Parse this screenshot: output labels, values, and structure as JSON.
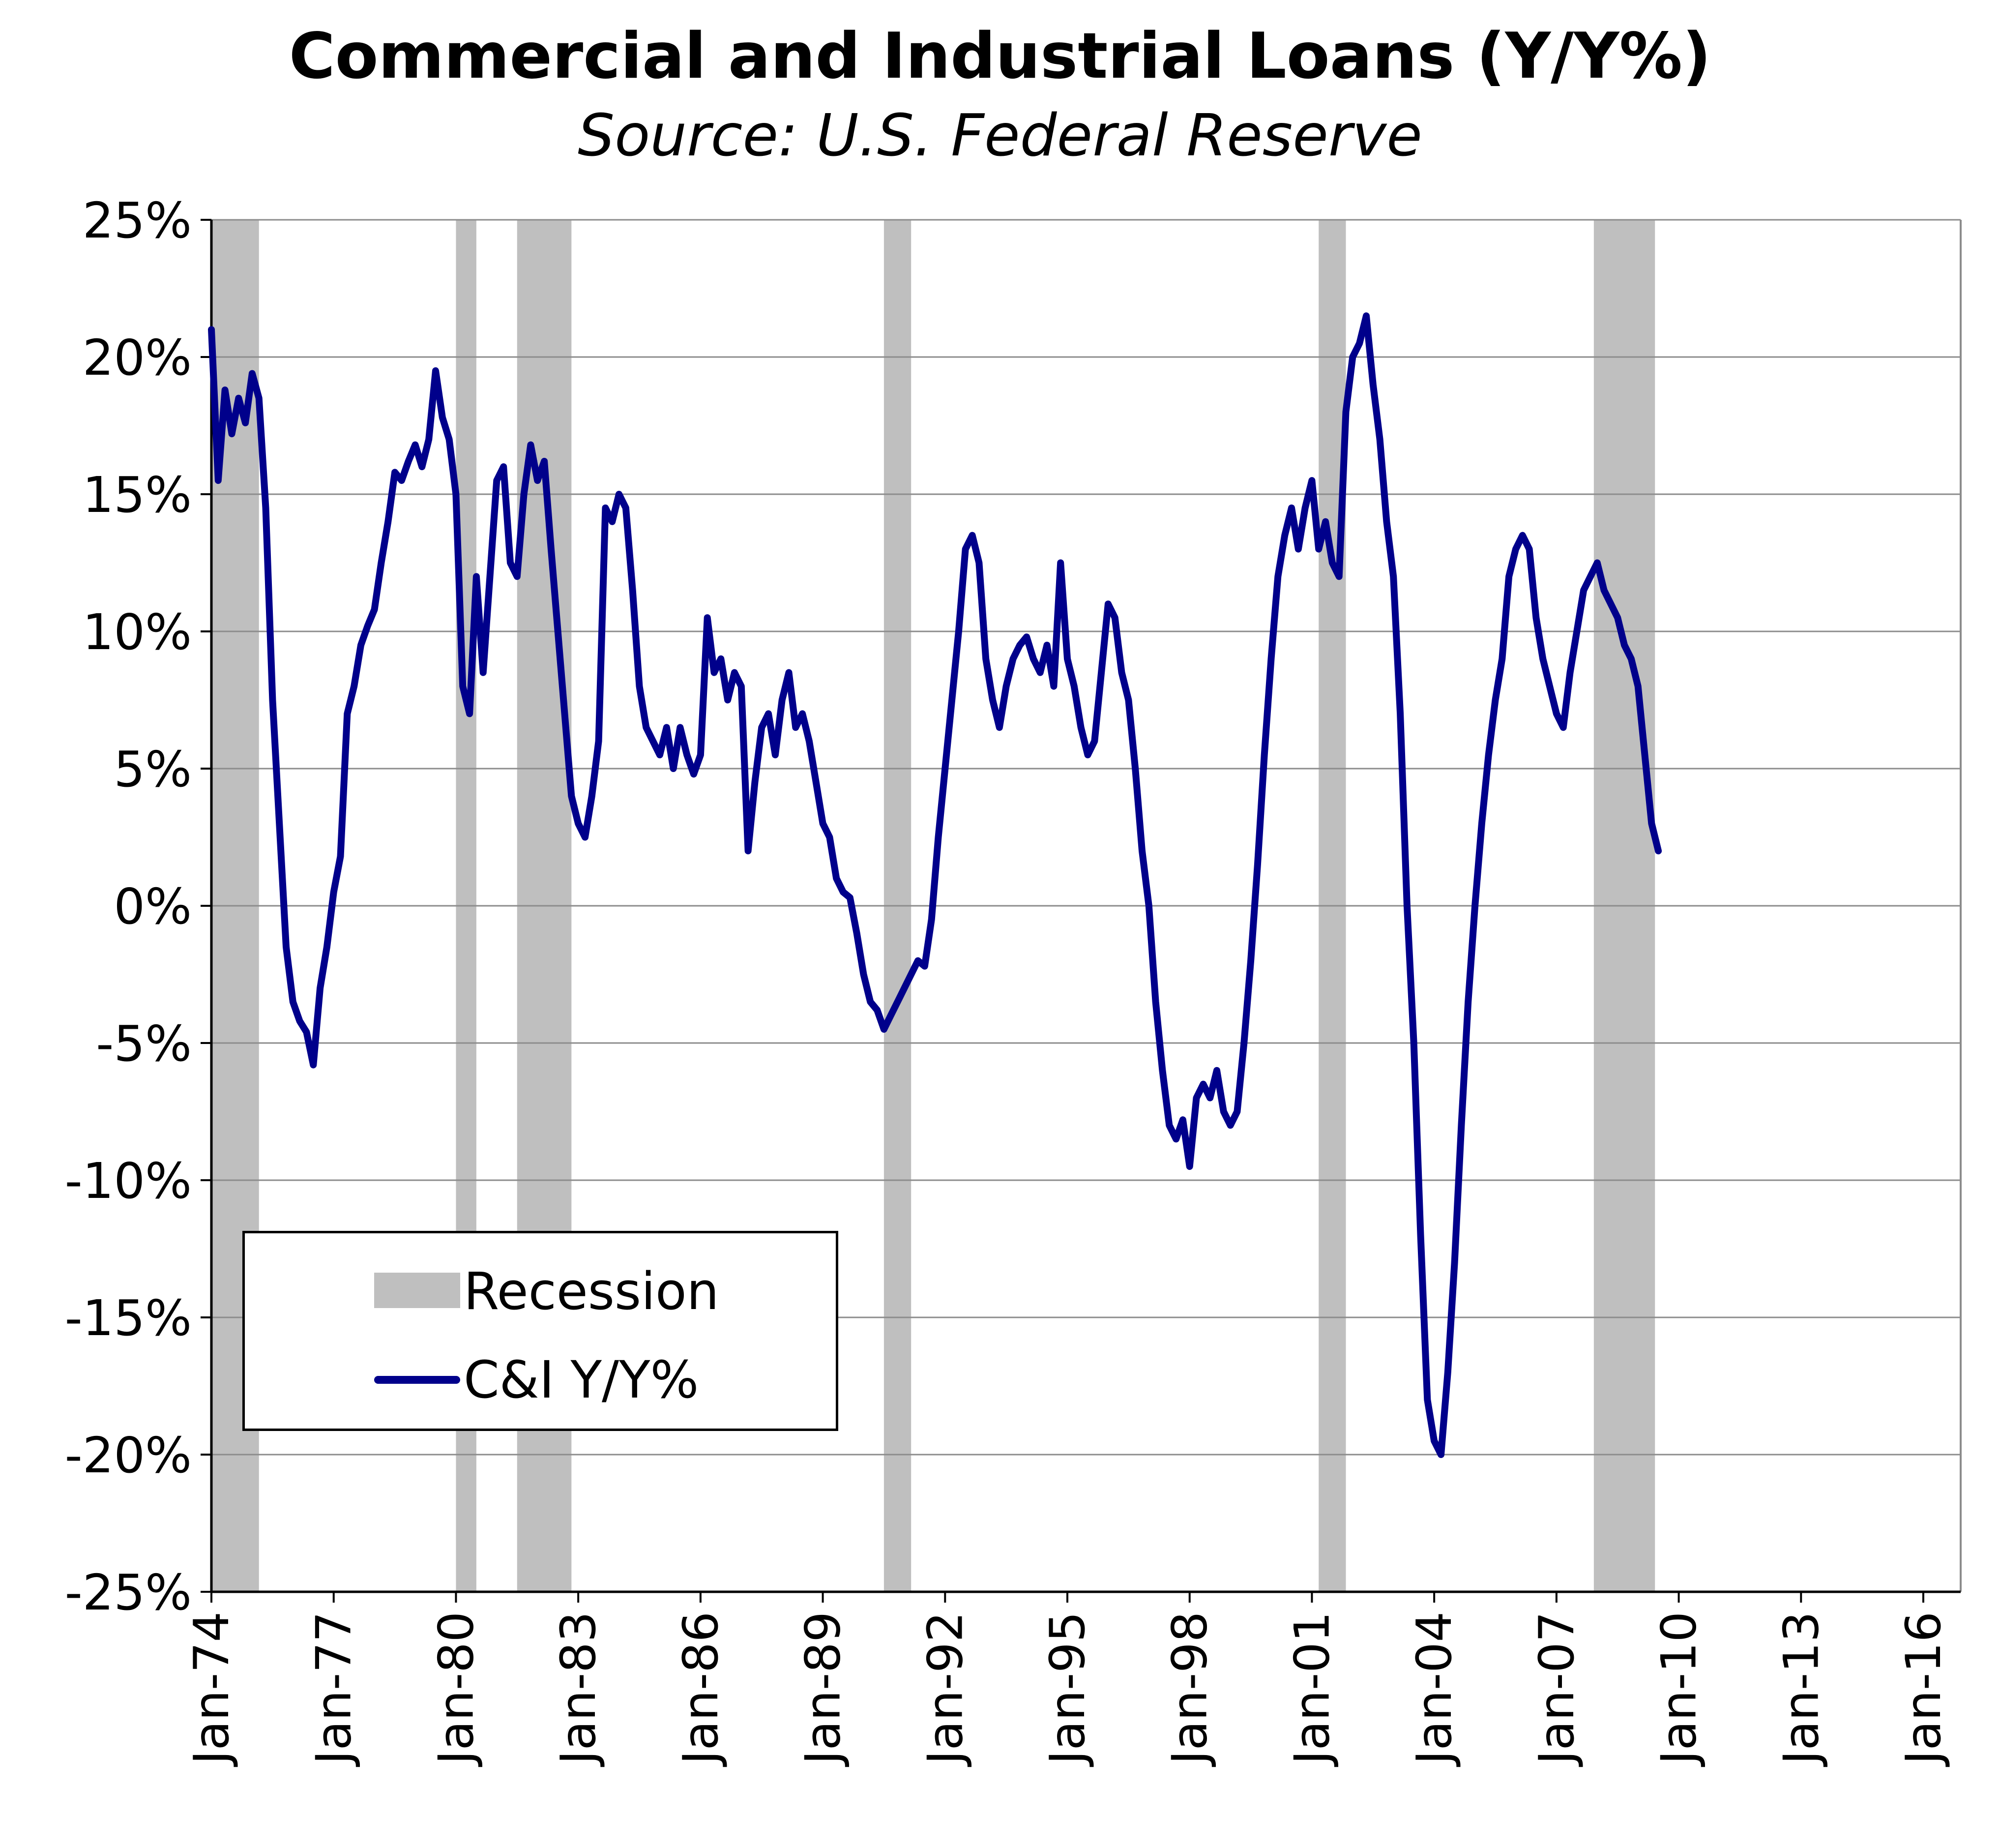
{
  "chart_data": {
    "type": "line",
    "title": "Commercial and Industrial Loans (Y/Y%)",
    "subtitle": "Source: U.S. Federal Reserve",
    "xlabel": "",
    "ylabel": "",
    "ylim": [
      -25,
      25
    ],
    "xlim": [
      "1974-01",
      "2016-12"
    ],
    "y_ticks": [
      "25%",
      "20%",
      "15%",
      "10%",
      "5%",
      "0%",
      "-5%",
      "-10%",
      "-15%",
      "-20%",
      "-25%"
    ],
    "x_ticks": [
      "Jan-74",
      "Jan-77",
      "Jan-80",
      "Jan-83",
      "Jan-86",
      "Jan-89",
      "Jan-92",
      "Jan-95",
      "Jan-98",
      "Jan-01",
      "Jan-04",
      "Jan-07",
      "Jan-10",
      "Jan-13",
      "Jan-16"
    ],
    "grid": "horizontal",
    "legend_position": "bottom-left",
    "legend": [
      {
        "label": "Recession",
        "kind": "band",
        "color": "#bfbfbf"
      },
      {
        "label": "C&I Y/Y%",
        "kind": "line",
        "color": "#00008b"
      }
    ],
    "recessions": [
      [
        "1974-01",
        "1975-03"
      ],
      [
        "1980-01",
        "1980-07"
      ],
      [
        "1981-07",
        "1982-11"
      ],
      [
        "1990-07",
        "1991-03"
      ],
      [
        "2001-03",
        "2001-11"
      ],
      [
        "2007-12",
        "2009-06"
      ]
    ],
    "series": [
      {
        "name": "C&I Y/Y%",
        "color": "#00008b",
        "points": [
          [
            "1974-01",
            21.0
          ],
          [
            "1974-03",
            15.5
          ],
          [
            "1974-05",
            18.8
          ],
          [
            "1974-07",
            17.2
          ],
          [
            "1974-09",
            18.5
          ],
          [
            "1974-11",
            17.6
          ],
          [
            "1975-01",
            19.4
          ],
          [
            "1975-03",
            18.5
          ],
          [
            "1975-05",
            14.5
          ],
          [
            "1975-07",
            7.5
          ],
          [
            "1975-09",
            3.0
          ],
          [
            "1975-11",
            -1.5
          ],
          [
            "1976-01",
            -3.5
          ],
          [
            "1976-03",
            -4.2
          ],
          [
            "1976-05",
            -4.6
          ],
          [
            "1976-07",
            -5.8
          ],
          [
            "1976-09",
            -3.0
          ],
          [
            "1976-11",
            -1.5
          ],
          [
            "1977-01",
            0.5
          ],
          [
            "1977-03",
            1.8
          ],
          [
            "1977-05",
            7.0
          ],
          [
            "1977-07",
            8.0
          ],
          [
            "1977-09",
            9.5
          ],
          [
            "1977-11",
            10.2
          ],
          [
            "1978-01",
            10.8
          ],
          [
            "1978-03",
            12.5
          ],
          [
            "1978-05",
            14.0
          ],
          [
            "1978-07",
            15.8
          ],
          [
            "1978-09",
            15.5
          ],
          [
            "1978-11",
            16.2
          ],
          [
            "1979-01",
            16.8
          ],
          [
            "1979-03",
            16.0
          ],
          [
            "1979-05",
            17.0
          ],
          [
            "1979-07",
            19.5
          ],
          [
            "1979-09",
            17.8
          ],
          [
            "1979-11",
            17.0
          ],
          [
            "1980-01",
            15.0
          ],
          [
            "1980-03",
            8.0
          ],
          [
            "1980-05",
            7.0
          ],
          [
            "1980-07",
            12.0
          ],
          [
            "1980-09",
            8.5
          ],
          [
            "1980-11",
            12.0
          ],
          [
            "1981-01",
            15.5
          ],
          [
            "1981-03",
            16.0
          ],
          [
            "1981-05",
            12.5
          ],
          [
            "1981-07",
            12.0
          ],
          [
            "1981-09",
            15.0
          ],
          [
            "1981-11",
            16.8
          ],
          [
            "1982-01",
            15.5
          ],
          [
            "1982-03",
            16.2
          ],
          [
            "1982-05",
            13.0
          ],
          [
            "1982-07",
            10.0
          ],
          [
            "1982-09",
            7.0
          ],
          [
            "1982-11",
            4.0
          ],
          [
            "1983-01",
            3.0
          ],
          [
            "1983-03",
            2.5
          ],
          [
            "1983-05",
            4.0
          ],
          [
            "1983-07",
            6.0
          ],
          [
            "1983-09",
            14.5
          ],
          [
            "1983-11",
            14.0
          ],
          [
            "1984-01",
            15.0
          ],
          [
            "1984-03",
            14.5
          ],
          [
            "1984-05",
            11.5
          ],
          [
            "1984-07",
            8.0
          ],
          [
            "1984-09",
            6.5
          ],
          [
            "1984-11",
            6.0
          ],
          [
            "1985-01",
            5.5
          ],
          [
            "1985-03",
            6.5
          ],
          [
            "1985-05",
            5.0
          ],
          [
            "1985-07",
            6.5
          ],
          [
            "1985-09",
            5.5
          ],
          [
            "1985-11",
            4.8
          ],
          [
            "1986-01",
            5.5
          ],
          [
            "1986-03",
            10.5
          ],
          [
            "1986-05",
            8.5
          ],
          [
            "1986-07",
            9.0
          ],
          [
            "1986-09",
            7.5
          ],
          [
            "1986-11",
            8.5
          ],
          [
            "1987-01",
            8.0
          ],
          [
            "1987-03",
            2.0
          ],
          [
            "1987-05",
            4.5
          ],
          [
            "1987-07",
            6.5
          ],
          [
            "1987-09",
            7.0
          ],
          [
            "1987-11",
            5.5
          ],
          [
            "1988-01",
            7.5
          ],
          [
            "1988-03",
            8.5
          ],
          [
            "1988-05",
            6.5
          ],
          [
            "1988-07",
            7.0
          ],
          [
            "1988-09",
            6.0
          ],
          [
            "1988-11",
            4.5
          ],
          [
            "1989-01",
            3.0
          ],
          [
            "1989-03",
            2.5
          ],
          [
            "1989-05",
            1.0
          ],
          [
            "1989-07",
            0.5
          ],
          [
            "1989-09",
            0.3
          ],
          [
            "1989-11",
            -1.0
          ],
          [
            "1990-01",
            -2.5
          ],
          [
            "1990-03",
            -3.5
          ],
          [
            "1990-05",
            -3.8
          ],
          [
            "1990-07",
            -4.5
          ],
          [
            "1990-09",
            -4.0
          ],
          [
            "1990-11",
            -3.5
          ],
          [
            "1991-01",
            -3.0
          ],
          [
            "1991-03",
            -2.5
          ],
          [
            "1991-05",
            -2.0
          ],
          [
            "1991-07",
            -2.2
          ],
          [
            "1991-09",
            -0.5
          ],
          [
            "1991-11",
            2.5
          ],
          [
            "1992-01",
            5.0
          ],
          [
            "1992-03",
            7.5
          ],
          [
            "1992-05",
            10.0
          ],
          [
            "1992-07",
            13.0
          ],
          [
            "1992-09",
            13.5
          ],
          [
            "1992-11",
            12.5
          ],
          [
            "1993-01",
            9.0
          ],
          [
            "1993-03",
            7.5
          ],
          [
            "1993-05",
            6.5
          ],
          [
            "1993-07",
            8.0
          ],
          [
            "1993-09",
            9.0
          ],
          [
            "1993-11",
            9.5
          ],
          [
            "1994-01",
            9.8
          ],
          [
            "1994-03",
            9.0
          ],
          [
            "1994-05",
            8.5
          ],
          [
            "1994-07",
            9.5
          ],
          [
            "1994-09",
            8.0
          ],
          [
            "1994-11",
            12.5
          ],
          [
            "1995-01",
            9.0
          ],
          [
            "1995-03",
            8.0
          ],
          [
            "1995-05",
            6.5
          ],
          [
            "1995-07",
            5.5
          ],
          [
            "1995-09",
            6.0
          ],
          [
            "1995-11",
            8.5
          ],
          [
            "1996-01",
            11.0
          ],
          [
            "1996-03",
            10.5
          ],
          [
            "1996-05",
            8.5
          ],
          [
            "1996-07",
            7.5
          ],
          [
            "1996-09",
            5.0
          ],
          [
            "1996-11",
            2.0
          ],
          [
            "1997-01",
            0.0
          ],
          [
            "1997-03",
            -3.5
          ],
          [
            "1997-05",
            -6.0
          ],
          [
            "1997-07",
            -8.0
          ],
          [
            "1997-09",
            -8.5
          ],
          [
            "1997-11",
            -7.8
          ],
          [
            "1998-01",
            -9.5
          ],
          [
            "1998-03",
            -7.0
          ],
          [
            "1998-05",
            -6.5
          ],
          [
            "1998-07",
            -7.0
          ],
          [
            "1998-09",
            -6.0
          ],
          [
            "1998-11",
            -7.5
          ],
          [
            "1999-01",
            -8.0
          ],
          [
            "1999-03",
            -7.5
          ],
          [
            "1999-05",
            -5.0
          ],
          [
            "1999-07",
            -2.0
          ],
          [
            "1999-09",
            1.5
          ],
          [
            "1999-11",
            5.5
          ],
          [
            "2000-01",
            9.0
          ],
          [
            "2000-03",
            12.0
          ],
          [
            "2000-05",
            13.5
          ],
          [
            "2000-07",
            14.5
          ],
          [
            "2000-09",
            13.0
          ],
          [
            "2000-11",
            14.5
          ],
          [
            "2001-01",
            15.5
          ],
          [
            "2001-03",
            13.0
          ],
          [
            "2001-05",
            14.0
          ],
          [
            "2001-07",
            12.5
          ],
          [
            "2001-09",
            12.0
          ],
          [
            "2001-11",
            18.0
          ],
          [
            "2002-01",
            20.0
          ],
          [
            "2002-03",
            20.5
          ],
          [
            "2002-05",
            21.5
          ],
          [
            "2002-07",
            19.0
          ],
          [
            "2002-09",
            17.0
          ],
          [
            "2002-11",
            14.0
          ],
          [
            "2003-01",
            12.0
          ],
          [
            "2003-03",
            7.0
          ],
          [
            "2003-05",
            0.0
          ],
          [
            "2003-07",
            -5.0
          ],
          [
            "2003-09",
            -12.0
          ],
          [
            "2003-11",
            -18.0
          ],
          [
            "2004-01",
            -19.5
          ],
          [
            "2004-03",
            -20.0
          ],
          [
            "2004-05",
            -17.0
          ],
          [
            "2004-07",
            -13.0
          ],
          [
            "2004-09",
            -8.0
          ],
          [
            "2004-11",
            -3.5
          ],
          [
            "2005-01",
            0.0
          ],
          [
            "2005-03",
            3.0
          ],
          [
            "2005-05",
            5.5
          ],
          [
            "2005-07",
            7.5
          ],
          [
            "2005-09",
            9.0
          ],
          [
            "2005-11",
            12.0
          ],
          [
            "2006-01",
            13.0
          ],
          [
            "2006-03",
            13.5
          ],
          [
            "2006-05",
            13.0
          ],
          [
            "2006-07",
            10.5
          ],
          [
            "2006-09",
            9.0
          ],
          [
            "2006-11",
            8.0
          ],
          [
            "2007-01",
            7.0
          ],
          [
            "2007-03",
            6.5
          ],
          [
            "2007-05",
            8.5
          ],
          [
            "2007-07",
            10.0
          ],
          [
            "2007-09",
            11.5
          ],
          [
            "2007-11",
            12.0
          ],
          [
            "2008-01",
            12.5
          ],
          [
            "2008-03",
            11.5
          ],
          [
            "2008-05",
            11.0
          ],
          [
            "2008-07",
            10.5
          ],
          [
            "2008-09",
            9.5
          ],
          [
            "2008-11",
            9.0
          ],
          [
            "2009-01",
            8.0
          ],
          [
            "2009-03",
            5.5
          ],
          [
            "2009-05",
            3.0
          ],
          [
            "2009-07",
            2.0
          ]
        ]
      }
    ]
  }
}
